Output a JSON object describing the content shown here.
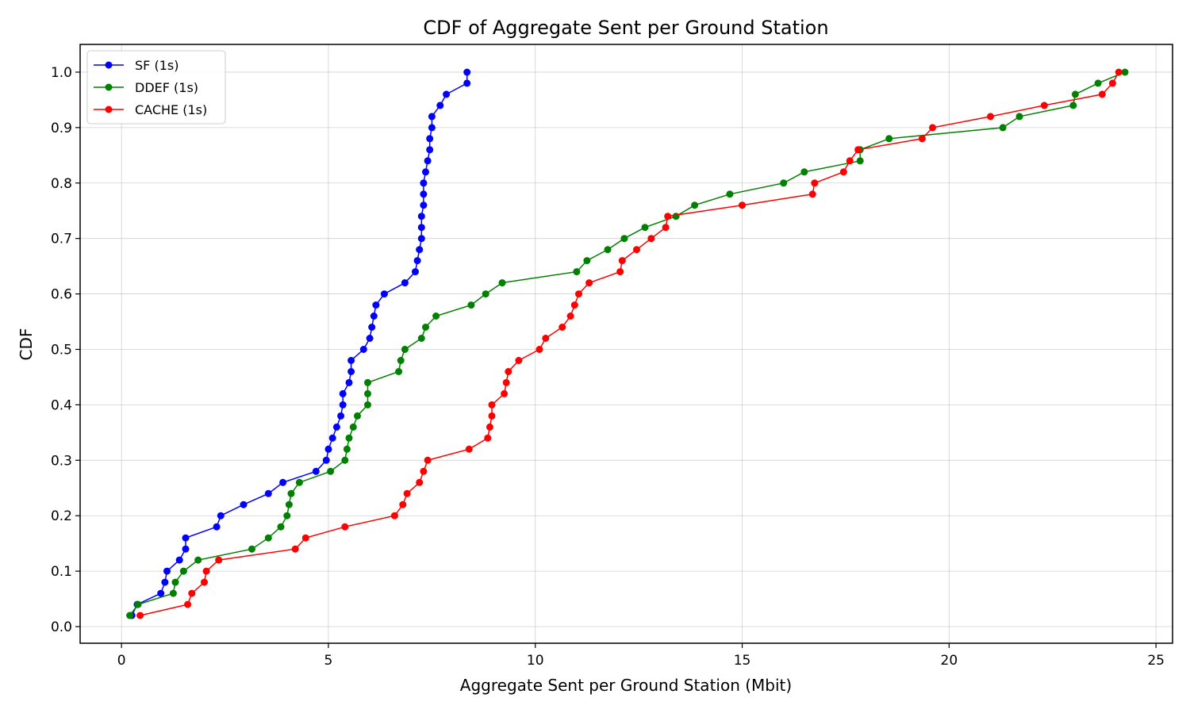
{
  "chart_data": {
    "type": "line",
    "title": "CDF of Aggregate Sent per Ground Station",
    "xlabel": "Aggregate Sent per Ground Station (Mbit)",
    "ylabel": "CDF",
    "xlim": [
      -1,
      25.4
    ],
    "ylim": [
      -0.03,
      1.05
    ],
    "xticks": [
      0,
      5,
      10,
      15,
      20,
      25
    ],
    "yticks": [
      0.0,
      0.1,
      0.2,
      0.3,
      0.4,
      0.5,
      0.6,
      0.7,
      0.8,
      0.9,
      1.0
    ],
    "xtick_labels": [
      "0",
      "5",
      "10",
      "15",
      "20",
      "25"
    ],
    "ytick_labels": [
      "0.0",
      "0.1",
      "0.2",
      "0.3",
      "0.4",
      "0.5",
      "0.6",
      "0.7",
      "0.8",
      "0.9",
      "1.0"
    ],
    "grid": true,
    "legend_position": "top-left",
    "series": [
      {
        "name": "SF (1s)",
        "color": "#0000ff",
        "points": [
          [
            0.25,
            0.02
          ],
          [
            0.38,
            0.04
          ],
          [
            0.95,
            0.06
          ],
          [
            1.05,
            0.08
          ],
          [
            1.1,
            0.1
          ],
          [
            1.4,
            0.12
          ],
          [
            1.55,
            0.14
          ],
          [
            1.55,
            0.16
          ],
          [
            2.3,
            0.18
          ],
          [
            2.4,
            0.2
          ],
          [
            2.95,
            0.22
          ],
          [
            3.55,
            0.24
          ],
          [
            3.9,
            0.26
          ],
          [
            4.7,
            0.28
          ],
          [
            4.95,
            0.3
          ],
          [
            5.0,
            0.32
          ],
          [
            5.1,
            0.34
          ],
          [
            5.2,
            0.36
          ],
          [
            5.3,
            0.38
          ],
          [
            5.35,
            0.4
          ],
          [
            5.35,
            0.42
          ],
          [
            5.5,
            0.44
          ],
          [
            5.55,
            0.46
          ],
          [
            5.55,
            0.48
          ],
          [
            5.85,
            0.5
          ],
          [
            6.0,
            0.52
          ],
          [
            6.05,
            0.54
          ],
          [
            6.1,
            0.56
          ],
          [
            6.15,
            0.58
          ],
          [
            6.35,
            0.6
          ],
          [
            6.85,
            0.62
          ],
          [
            7.1,
            0.64
          ],
          [
            7.15,
            0.66
          ],
          [
            7.2,
            0.68
          ],
          [
            7.25,
            0.7
          ],
          [
            7.25,
            0.72
          ],
          [
            7.25,
            0.74
          ],
          [
            7.3,
            0.76
          ],
          [
            7.3,
            0.78
          ],
          [
            7.3,
            0.8
          ],
          [
            7.35,
            0.82
          ],
          [
            7.4,
            0.84
          ],
          [
            7.45,
            0.86
          ],
          [
            7.45,
            0.88
          ],
          [
            7.5,
            0.9
          ],
          [
            7.5,
            0.92
          ],
          [
            7.7,
            0.94
          ],
          [
            7.85,
            0.96
          ],
          [
            8.35,
            0.98
          ],
          [
            8.35,
            1.0
          ]
        ]
      },
      {
        "name": "DDEF (1s)",
        "color": "#008000",
        "points": [
          [
            0.2,
            0.02
          ],
          [
            0.4,
            0.04
          ],
          [
            1.25,
            0.06
          ],
          [
            1.3,
            0.08
          ],
          [
            1.5,
            0.1
          ],
          [
            1.85,
            0.12
          ],
          [
            3.15,
            0.14
          ],
          [
            3.55,
            0.16
          ],
          [
            3.85,
            0.18
          ],
          [
            4.0,
            0.2
          ],
          [
            4.05,
            0.22
          ],
          [
            4.1,
            0.24
          ],
          [
            4.3,
            0.26
          ],
          [
            5.05,
            0.28
          ],
          [
            5.4,
            0.3
          ],
          [
            5.45,
            0.32
          ],
          [
            5.5,
            0.34
          ],
          [
            5.6,
            0.36
          ],
          [
            5.7,
            0.38
          ],
          [
            5.95,
            0.4
          ],
          [
            5.95,
            0.42
          ],
          [
            5.95,
            0.44
          ],
          [
            6.7,
            0.46
          ],
          [
            6.75,
            0.48
          ],
          [
            6.85,
            0.5
          ],
          [
            7.25,
            0.52
          ],
          [
            7.35,
            0.54
          ],
          [
            7.6,
            0.56
          ],
          [
            8.45,
            0.58
          ],
          [
            8.8,
            0.6
          ],
          [
            9.2,
            0.62
          ],
          [
            11.0,
            0.64
          ],
          [
            11.25,
            0.66
          ],
          [
            11.75,
            0.68
          ],
          [
            12.15,
            0.7
          ],
          [
            12.65,
            0.72
          ],
          [
            13.4,
            0.74
          ],
          [
            13.85,
            0.76
          ],
          [
            14.7,
            0.78
          ],
          [
            16.0,
            0.8
          ],
          [
            16.5,
            0.82
          ],
          [
            17.85,
            0.84
          ],
          [
            17.85,
            0.86
          ],
          [
            18.55,
            0.88
          ],
          [
            21.3,
            0.9
          ],
          [
            21.7,
            0.92
          ],
          [
            23.0,
            0.94
          ],
          [
            23.05,
            0.96
          ],
          [
            23.6,
            0.98
          ],
          [
            24.25,
            1.0
          ]
        ]
      },
      {
        "name": "CACHE (1s)",
        "color": "#ff0000",
        "points": [
          [
            0.45,
            0.02
          ],
          [
            1.6,
            0.04
          ],
          [
            1.7,
            0.06
          ],
          [
            2.0,
            0.08
          ],
          [
            2.05,
            0.1
          ],
          [
            2.35,
            0.12
          ],
          [
            4.2,
            0.14
          ],
          [
            4.45,
            0.16
          ],
          [
            5.4,
            0.18
          ],
          [
            6.6,
            0.2
          ],
          [
            6.8,
            0.22
          ],
          [
            6.9,
            0.24
          ],
          [
            7.2,
            0.26
          ],
          [
            7.3,
            0.28
          ],
          [
            7.4,
            0.3
          ],
          [
            8.4,
            0.32
          ],
          [
            8.85,
            0.34
          ],
          [
            8.9,
            0.36
          ],
          [
            8.95,
            0.38
          ],
          [
            8.95,
            0.4
          ],
          [
            9.25,
            0.42
          ],
          [
            9.3,
            0.44
          ],
          [
            9.35,
            0.46
          ],
          [
            9.6,
            0.48
          ],
          [
            10.1,
            0.5
          ],
          [
            10.25,
            0.52
          ],
          [
            10.65,
            0.54
          ],
          [
            10.85,
            0.56
          ],
          [
            10.95,
            0.58
          ],
          [
            11.05,
            0.6
          ],
          [
            11.3,
            0.62
          ],
          [
            12.05,
            0.64
          ],
          [
            12.1,
            0.66
          ],
          [
            12.45,
            0.68
          ],
          [
            12.8,
            0.7
          ],
          [
            13.15,
            0.72
          ],
          [
            13.2,
            0.74
          ],
          [
            15.0,
            0.76
          ],
          [
            16.7,
            0.78
          ],
          [
            16.75,
            0.8
          ],
          [
            17.45,
            0.82
          ],
          [
            17.6,
            0.84
          ],
          [
            17.8,
            0.86
          ],
          [
            19.35,
            0.88
          ],
          [
            19.6,
            0.9
          ],
          [
            21.0,
            0.92
          ],
          [
            22.3,
            0.94
          ],
          [
            23.7,
            0.96
          ],
          [
            23.95,
            0.98
          ],
          [
            24.1,
            1.0
          ]
        ]
      }
    ]
  }
}
